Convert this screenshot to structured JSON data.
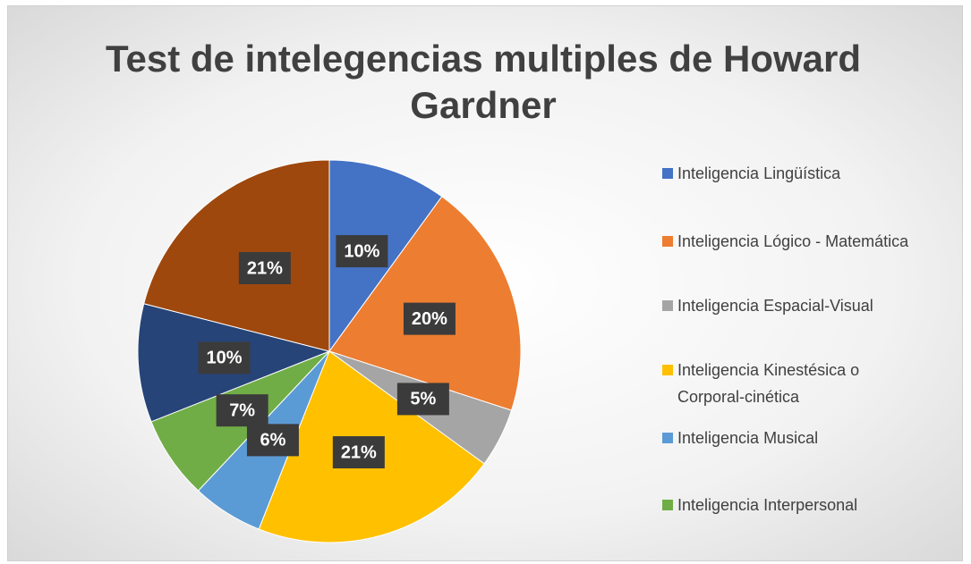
{
  "chart_data": {
    "type": "pie",
    "title": "Test de intelegencias multiples de Howard Gardner",
    "categories": [
      "Inteligencia Lingüística",
      "Inteligencia Lógico - Matemática",
      "Inteligencia Espacial-Visual",
      "Inteligencia Kinestésica o Corporal-cinética",
      "Inteligencia Musical",
      "Inteligencia Interpersonal",
      null,
      null
    ],
    "values": [
      10,
      20,
      5,
      21,
      6,
      7,
      10,
      21
    ],
    "value_labels": [
      "10%",
      "20%",
      "5%",
      "21%",
      "6%",
      "7%",
      "10%",
      "21%"
    ],
    "colors": [
      "#4472c4",
      "#ed7d31",
      "#a5a5a5",
      "#ffc000",
      "#5b9bd5",
      "#70ad47",
      "#264478",
      "#9e480e"
    ],
    "legend": "right"
  }
}
